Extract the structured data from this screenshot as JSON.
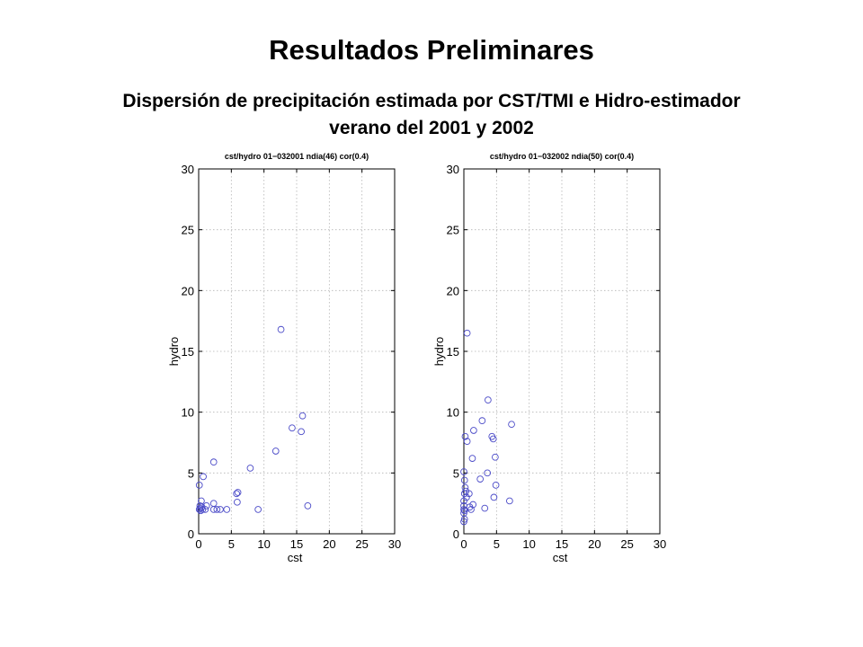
{
  "slide": {
    "title": "Resultados Preliminares",
    "subtitle_line1": "Dispersión de precipitación estimada por CST/TMI e Hidro-estimador",
    "subtitle_line2": "verano del  2001 y 2002"
  },
  "colors": {
    "marker": "#4b4bc8",
    "grid": "#b4b4b4",
    "axis": "#000000"
  },
  "chart_data": [
    {
      "type": "scatter",
      "title": "cst/hydro  01−032001 ndia(46) cor(0.4)",
      "xlabel": "cst",
      "ylabel": "hydro",
      "xlim": [
        0,
        30
      ],
      "ylim": [
        0,
        30
      ],
      "xticks": [
        0,
        5,
        10,
        15,
        20,
        25,
        30
      ],
      "yticks": [
        0,
        5,
        10,
        15,
        20,
        25,
        30
      ],
      "grid": true,
      "points": [
        [
          12.6,
          16.8
        ],
        [
          0.1,
          4.0
        ],
        [
          0.7,
          4.7
        ],
        [
          2.3,
          5.9
        ],
        [
          7.9,
          5.4
        ],
        [
          11.8,
          6.8
        ],
        [
          14.3,
          8.7
        ],
        [
          15.7,
          8.4
        ],
        [
          15.9,
          9.7
        ],
        [
          16.7,
          2.3
        ],
        [
          9.1,
          2.0
        ],
        [
          5.8,
          3.3
        ],
        [
          5.9,
          2.6
        ],
        [
          6.0,
          3.4
        ],
        [
          4.3,
          2.0
        ],
        [
          3.3,
          2.0
        ],
        [
          2.8,
          2.0
        ],
        [
          2.3,
          2.0
        ],
        [
          2.3,
          2.5
        ],
        [
          1.2,
          2.3
        ],
        [
          1.0,
          2.0
        ],
        [
          0.6,
          2.0
        ],
        [
          0.4,
          2.7
        ],
        [
          0.2,
          2.3
        ],
        [
          0.2,
          2.1
        ],
        [
          0.3,
          1.9
        ],
        [
          0.5,
          2.2
        ],
        [
          0.1,
          2.0
        ]
      ]
    },
    {
      "type": "scatter",
      "title": "cst/hydro  01−032002 ndia(50) cor(0.4)",
      "xlabel": "cst",
      "ylabel": "hydro",
      "xlim": [
        0,
        30
      ],
      "ylim": [
        0,
        30
      ],
      "xticks": [
        0,
        5,
        10,
        15,
        20,
        25,
        30
      ],
      "yticks": [
        0,
        5,
        10,
        15,
        20,
        25,
        30
      ],
      "grid": true,
      "points": [
        [
          0.5,
          16.5
        ],
        [
          3.7,
          11.0
        ],
        [
          7.3,
          9.0
        ],
        [
          2.8,
          9.3
        ],
        [
          1.5,
          8.5
        ],
        [
          0.2,
          8.0
        ],
        [
          0.5,
          7.6
        ],
        [
          4.3,
          8.0
        ],
        [
          4.5,
          7.8
        ],
        [
          4.8,
          6.3
        ],
        [
          1.3,
          6.2
        ],
        [
          3.6,
          5.0
        ],
        [
          0.0,
          5.1
        ],
        [
          0.1,
          4.4
        ],
        [
          0.2,
          3.8
        ],
        [
          2.5,
          4.5
        ],
        [
          4.9,
          4.0
        ],
        [
          0.1,
          3.3
        ],
        [
          0.3,
          3.5
        ],
        [
          0.8,
          3.3
        ],
        [
          0.4,
          3.0
        ],
        [
          0.0,
          2.7
        ],
        [
          4.6,
          3.0
        ],
        [
          7.0,
          2.7
        ],
        [
          3.2,
          2.1
        ],
        [
          0.9,
          2.2
        ],
        [
          1.1,
          2.0
        ],
        [
          1.4,
          2.4
        ],
        [
          0.0,
          2.0
        ],
        [
          0.0,
          2.3
        ],
        [
          0.1,
          1.9
        ],
        [
          0.0,
          1.7
        ],
        [
          0.1,
          1.2
        ],
        [
          0.0,
          1.0
        ]
      ]
    }
  ]
}
